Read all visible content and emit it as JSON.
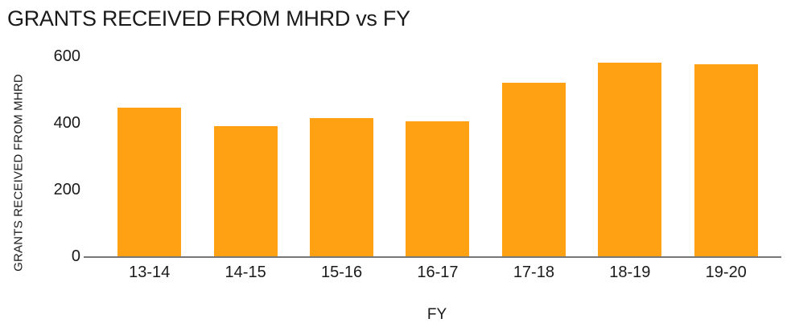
{
  "chart_data": {
    "type": "bar",
    "title": "GRANTS RECEIVED FROM MHRD vs FY",
    "xlabel": "FY",
    "ylabel": "GRANTS RECEIVED FROM MHRD",
    "categories": [
      "13-14",
      "14-15",
      "15-16",
      "16-17",
      "17-18",
      "18-19",
      "19-20"
    ],
    "values": [
      445,
      390,
      415,
      405,
      520,
      580,
      575
    ],
    "ylim": [
      0,
      600
    ],
    "yticks": [
      0,
      200,
      400,
      600
    ],
    "grid": "off",
    "legend": "none",
    "bar_color": "#FFA113",
    "axis_color": "#777777",
    "text_color": "#1A1A1A",
    "background_color": "#FFFFFF"
  }
}
